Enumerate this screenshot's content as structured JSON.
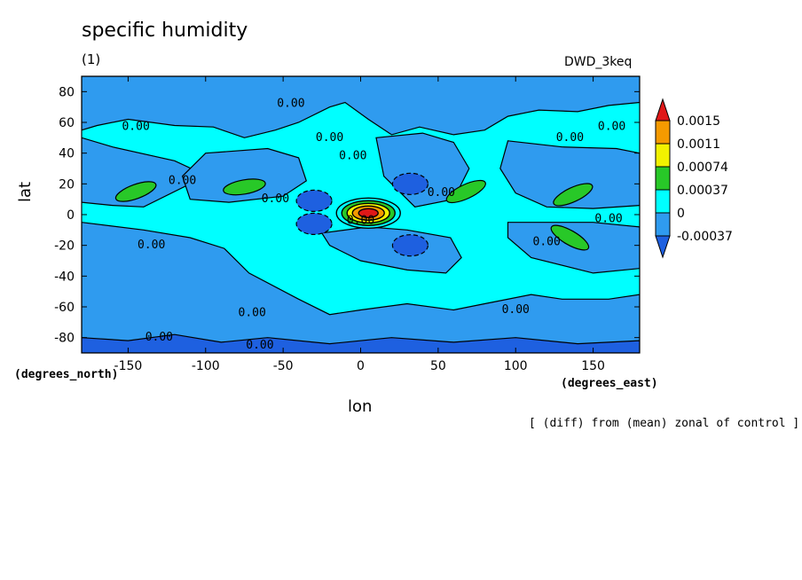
{
  "chart_data": {
    "type": "contour",
    "title": "specific humidity",
    "units": "(1)",
    "dataset": "DWD_3keq",
    "xlabel": "lon",
    "xunits": "(degrees_east)",
    "ylabel": "lat",
    "yunits": "(degrees_north)",
    "note": "[ (diff) from (mean) zonal of control ]",
    "xlim": [
      -180,
      180
    ],
    "ylim": [
      -90,
      90
    ],
    "xticks": [
      -150,
      -100,
      -50,
      0,
      50,
      100,
      150
    ],
    "xtick_labels": [
      "-150",
      "-100",
      "-50",
      "0",
      "50",
      "100",
      "150"
    ],
    "yticks": [
      -80,
      -60,
      -40,
      -20,
      0,
      20,
      40,
      60,
      80
    ],
    "ytick_labels": [
      "-80",
      "-60",
      "-40",
      "-20",
      "0",
      "20",
      "40",
      "60",
      "80"
    ],
    "colorbar": {
      "labels": [
        "0.0015",
        "0.0011",
        "0.00074",
        "0.00037",
        "0",
        "-0.00037"
      ],
      "colors": [
        "#e01818",
        "#f59a00",
        "#f2f200",
        "#28c828",
        "#00ffff",
        "#2f9bef",
        "#1e60e0"
      ]
    },
    "contour_label": "0.00",
    "fill_colors": {
      "background": "#00ffff",
      "neg1": "#2f9bef",
      "neg2": "#1e60e0",
      "pos1": "#28c828",
      "pos2": "#f2f200",
      "pos3": "#f59a00",
      "pos4": "#e01818"
    },
    "positive_cells": [
      {
        "lon": -145,
        "lat": 15,
        "value": 0.0005
      },
      {
        "lon": -75,
        "lat": 18,
        "value": 0.0005
      },
      {
        "lon": 68,
        "lat": 15,
        "value": 0.0005
      },
      {
        "lon": 137,
        "lat": 13,
        "value": 0.0005
      },
      {
        "lon": 135,
        "lat": -15,
        "value": 0.0005
      },
      {
        "lon": 5,
        "lat": 1,
        "value": 0.0016
      }
    ],
    "negative_cells": [
      {
        "lon": -30,
        "lat": 9,
        "value": -0.0005
      },
      {
        "lon": -30,
        "lat": -6,
        "value": -0.0005
      },
      {
        "lon": 32,
        "lat": 20,
        "value": -0.0005
      },
      {
        "lon": 32,
        "lat": -20,
        "value": -0.0005
      }
    ]
  }
}
